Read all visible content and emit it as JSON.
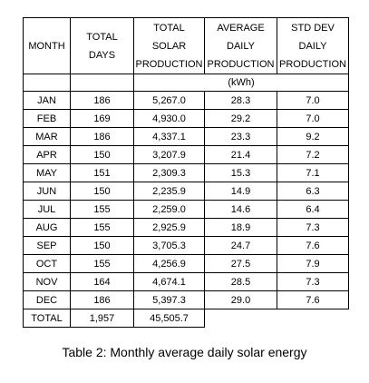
{
  "table": {
    "headers": {
      "month": "MONTH",
      "total_days": [
        "TOTAL",
        "DAYS"
      ],
      "total_solar": [
        "TOTAL",
        "SOLAR",
        "PRODUCTION"
      ],
      "avg_daily": [
        "AVERAGE",
        "DAILY",
        "PRODUCTION"
      ],
      "std_dev": [
        "STD DEV",
        "DAILY",
        "PRODUCTION"
      ],
      "units": "(kWh)"
    },
    "rows": [
      {
        "month": "JAN",
        "days": "186",
        "total": "5,267.0",
        "avg": "28.3",
        "std": "7.0"
      },
      {
        "month": "FEB",
        "days": "169",
        "total": "4,930.0",
        "avg": "29.2",
        "std": "7.0"
      },
      {
        "month": "MAR",
        "days": "186",
        "total": "4,337.1",
        "avg": "23.3",
        "std": "9.2"
      },
      {
        "month": "APR",
        "days": "150",
        "total": "3,207.9",
        "avg": "21.4",
        "std": "7.2"
      },
      {
        "month": "MAY",
        "days": "151",
        "total": "2,309.3",
        "avg": "15.3",
        "std": "7.1"
      },
      {
        "month": "JUN",
        "days": "150",
        "total": "2,235.9",
        "avg": "14.9",
        "std": "6.3"
      },
      {
        "month": "JUL",
        "days": "155",
        "total": "2,259.0",
        "avg": "14.6",
        "std": "6.4"
      },
      {
        "month": "AUG",
        "days": "155",
        "total": "2,925.9",
        "avg": "18.9",
        "std": "7.3"
      },
      {
        "month": "SEP",
        "days": "150",
        "total": "3,705.3",
        "avg": "24.7",
        "std": "7.6"
      },
      {
        "month": "OCT",
        "days": "155",
        "total": "4,256.9",
        "avg": "27.5",
        "std": "7.9"
      },
      {
        "month": "NOV",
        "days": "164",
        "total": "4,674.1",
        "avg": "28.5",
        "std": "7.3"
      },
      {
        "month": "DEC",
        "days": "186",
        "total": "5,397.3",
        "avg": "29.0",
        "std": "7.6"
      }
    ],
    "total_row": {
      "label": "TOTAL",
      "days": "1,957",
      "total": "45,505.7"
    }
  },
  "caption": "Table 2: Monthly average daily solar energy"
}
